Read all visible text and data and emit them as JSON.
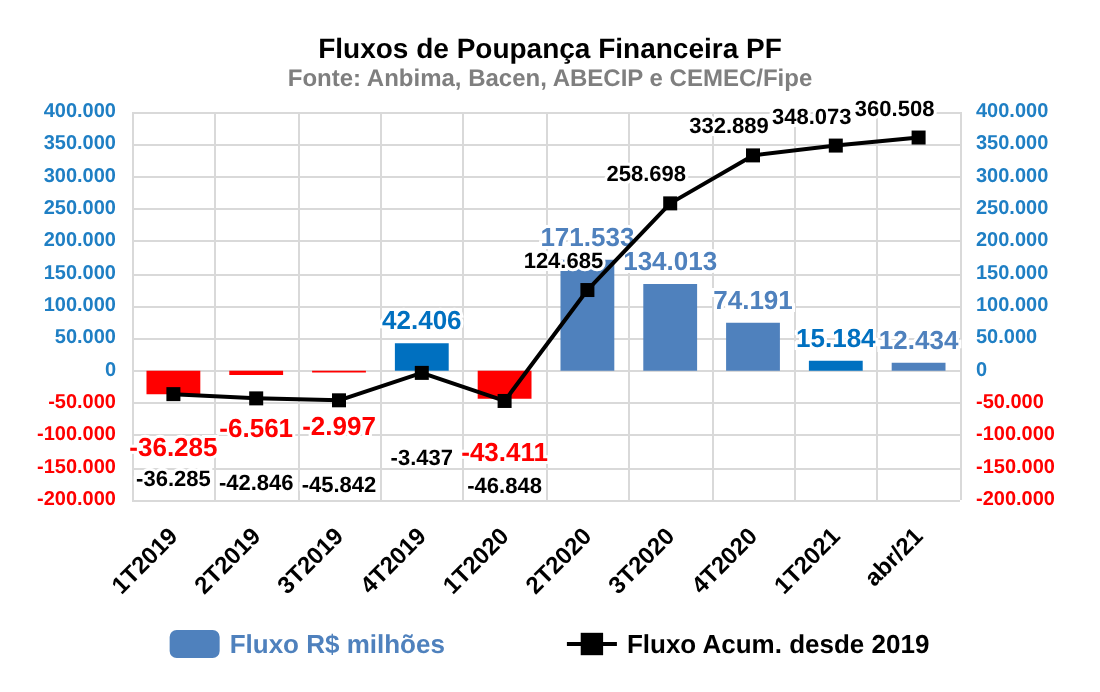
{
  "chart_data": {
    "type": "bar",
    "title": "Fluxos de Poupança Financeira PF",
    "subtitle": "Fonte: Anbima, Bacen, ABECIP e CEMEC/Fipe",
    "categories": [
      "1T2019",
      "2T2019",
      "3T2019",
      "4T2019",
      "1T2020",
      "2T2020",
      "3T2020",
      "4T2020",
      "1T2021",
      "abr/21"
    ],
    "series": [
      {
        "name": "Fluxo R$ milhões",
        "color": "#4f81bd",
        "colors": [
          "#ff0000",
          "#ff0000",
          "#ff0000",
          "#0070c0",
          "#ff0000",
          "#4f81bd",
          "#4f81bd",
          "#4f81bd",
          "#0070c0",
          "#4f81bd"
        ],
        "values": [
          -36285,
          -6561,
          -2997,
          42406,
          -43411,
          171533,
          134013,
          74191,
          15184,
          12434
        ],
        "value_labels": [
          "-36.285",
          "-6.561",
          "-2.997",
          "42.406",
          "-43.411",
          "171.533",
          "134.013",
          "74.191",
          "15.184",
          "12.434"
        ]
      },
      {
        "name": "Fluxo Acum. desde 2019",
        "type": "line",
        "color": "#000000",
        "marker": "square",
        "values": [
          -36285,
          -42846,
          -45842,
          -3437,
          -46848,
          124685,
          258698,
          332889,
          348073,
          360508
        ],
        "value_labels": [
          "-36.285",
          "-42.846",
          "-45.842",
          "-3.437",
          "-46.848",
          "124.685",
          "258.698",
          "332.889",
          "348.073",
          "360.508"
        ]
      }
    ],
    "ylim": [
      -200000,
      400000
    ],
    "yticks": [
      {
        "value": -200000,
        "label": "-200.000"
      },
      {
        "value": -150000,
        "label": "-150.000"
      },
      {
        "value": -100000,
        "label": "-100.000"
      },
      {
        "value": -50000,
        "label": "-50.000"
      },
      0,
      {
        "value": 50000,
        "label": "50.000"
      },
      {
        "value": 100000,
        "label": "100.000"
      },
      {
        "value": 150000,
        "label": "150.000"
      },
      {
        "value": 200000,
        "label": "200.000"
      },
      {
        "value": 250000,
        "label": "250.000"
      },
      {
        "value": 300000,
        "label": "300.000"
      },
      {
        "value": 350000,
        "label": "350.000"
      },
      {
        "value": 400000,
        "label": "400.000"
      }
    ],
    "y2lim": [
      -200000,
      400000
    ],
    "y2ticks": [
      {
        "value": -200000,
        "label": "-200.000"
      },
      {
        "value": -150000,
        "label": "-150.000"
      },
      {
        "value": -100000,
        "label": "-100.000"
      },
      {
        "value": -50000,
        "label": "-50.000"
      },
      0,
      {
        "value": 50000,
        "label": "50.000"
      },
      {
        "value": 100000,
        "label": "100.000"
      },
      {
        "value": 150000,
        "label": "150.000"
      },
      {
        "value": 200000,
        "label": "200.000"
      },
      {
        "value": 250000,
        "label": "250.000"
      },
      {
        "value": 300000,
        "label": "300.000"
      },
      {
        "value": 350000,
        "label": "350.000"
      },
      {
        "value": 400000,
        "label": "400.000"
      }
    ],
    "grid": true,
    "legend": "bottom"
  }
}
